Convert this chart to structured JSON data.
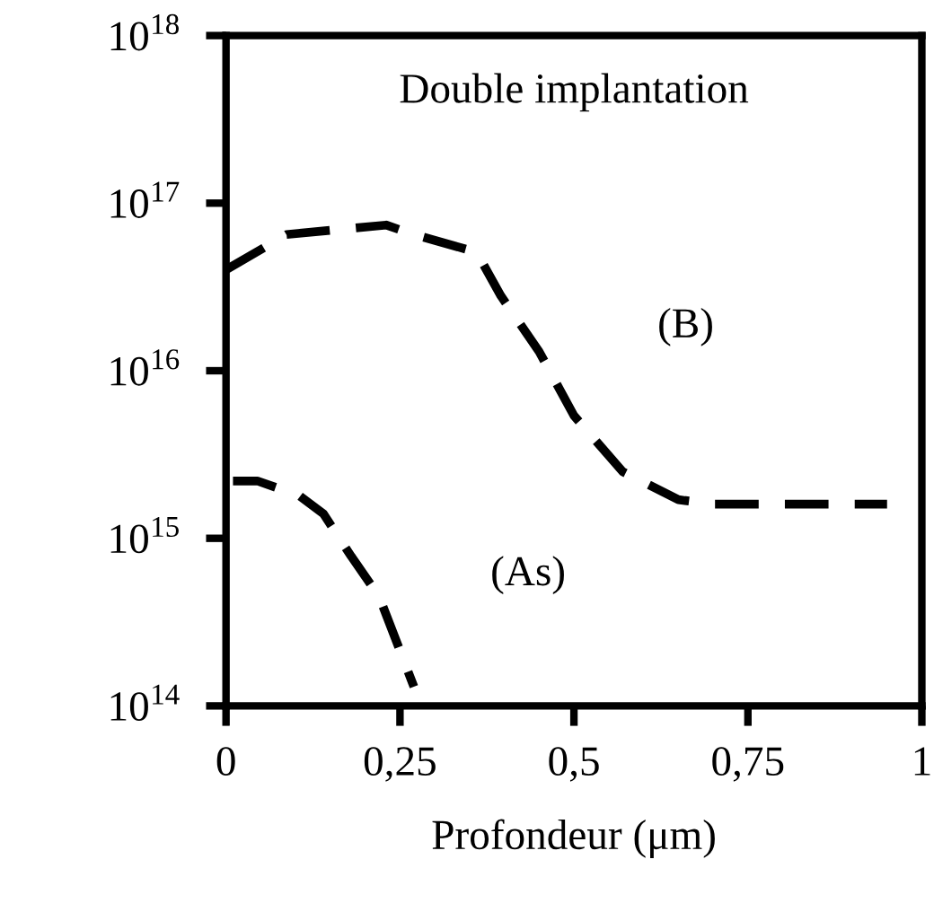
{
  "chart_data": {
    "type": "line",
    "title": "Double implantation",
    "xlabel": "Profondeur (μm)",
    "xlim": [
      0,
      1
    ],
    "xticks": [
      {
        "value": 0,
        "label": "0"
      },
      {
        "value": 0.25,
        "label": "0,25"
      },
      {
        "value": 0.5,
        "label": "0,5"
      },
      {
        "value": 0.75,
        "label": "0,75"
      },
      {
        "value": 1,
        "label": "1"
      }
    ],
    "log": "y",
    "ylim": [
      100000000000000.0,
      1e+18
    ],
    "yticks": [
      {
        "value": 100000000000000.0,
        "label": "10$^{14}$"
      },
      {
        "value": 1000000000000000.0,
        "label": "10$^{15}$"
      },
      {
        "value": 1e+16,
        "label": "10$^{16}$"
      },
      {
        "value": 1e+17,
        "label": "10$^{17}$"
      },
      {
        "value": 1e+18,
        "label": "10$^{18}$"
      }
    ],
    "grid": false,
    "legend": false,
    "line_style": "dashed",
    "marker": "none",
    "series": [
      {
        "name": "(B)",
        "color": "#000000",
        "x": [
          0,
          0.087,
          0.23,
          0.27,
          0.36,
          0.395,
          0.45,
          0.5,
          0.57,
          0.65,
          0.7,
          0.95
        ],
        "values": [
          4e+16,
          6.5e+16,
          7.4e+16,
          6.5e+16,
          5.1e+16,
          2.8e+16,
          1.3e+16,
          5400000000000000.0,
          2500000000000000.0,
          1700000000000000.0,
          1600000000000000.0,
          1600000000000000.0
        ]
      },
      {
        "name": "(As)",
        "color": "#000000",
        "x": [
          0.01,
          0.045,
          0.105,
          0.14,
          0.18,
          0.22,
          0.27
        ],
        "values": [
          2200000000000000.0,
          2200000000000000.0,
          1800000000000000.0,
          1400000000000000.0,
          780000000000000.0,
          450000000000000.0,
          130000000000000.0
        ]
      }
    ]
  }
}
